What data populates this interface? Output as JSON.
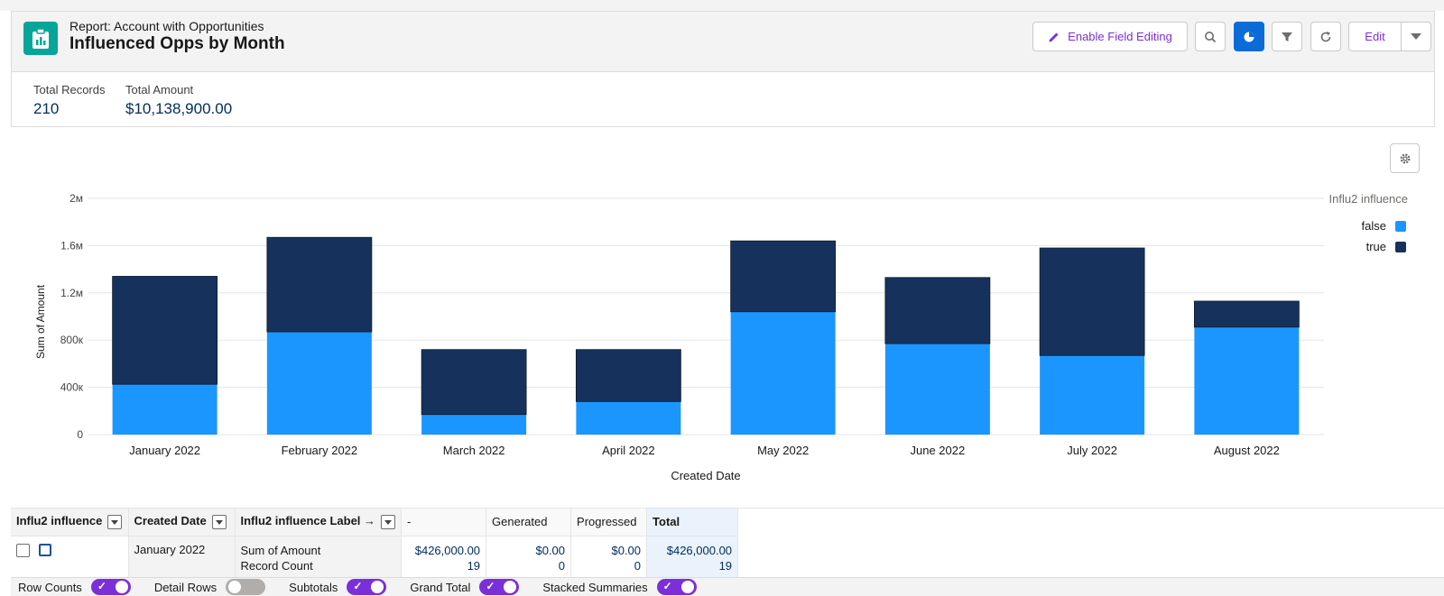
{
  "header": {
    "subtitle": "Report: Account with Opportunities",
    "title": "Influenced Opps by Month",
    "enable_field_editing": "Enable Field Editing",
    "edit_label": "Edit"
  },
  "summary": {
    "total_records_label": "Total Records",
    "total_records_value": "210",
    "total_amount_label": "Total Amount",
    "total_amount_value": "$10,138,900.00"
  },
  "chart_data": {
    "type": "bar",
    "stacked": true,
    "xlabel": "Created Date",
    "ylabel": "Sum of Amount",
    "ylim": [
      0,
      2000000
    ],
    "y_ticks": [
      "0",
      "400к",
      "800к",
      "1.2м",
      "1.6м",
      "2м"
    ],
    "y_tick_values": [
      0,
      400000,
      800000,
      1200000,
      1600000,
      2000000
    ],
    "categories": [
      "January 2022",
      "February 2022",
      "March 2022",
      "April 2022",
      "May 2022",
      "June 2022",
      "July 2022",
      "August 2022"
    ],
    "legend_title": "Influ2 influence",
    "legend_position": "top-right",
    "grid": true,
    "series": [
      {
        "name": "false",
        "color": "#1b96ff",
        "values": [
          426000,
          870000,
          170000,
          280000,
          1040000,
          770000,
          670000,
          910000
        ]
      },
      {
        "name": "true",
        "color": "#16325c",
        "values": [
          914000,
          800000,
          550000,
          440000,
          600000,
          560000,
          910000,
          220000
        ]
      }
    ]
  },
  "table": {
    "headers": {
      "col1": "Influ2 influence",
      "col2": "Created Date",
      "col3": "Influ2 influence Label →",
      "col4": "-",
      "col5": "Generated",
      "col6": "Progressed",
      "col7": "Total"
    },
    "row": {
      "created": "January 2022",
      "metric1": "Sum of Amount",
      "metric2": "Record Count",
      "dash_amount": "$426,000.00",
      "dash_count": "19",
      "gen_amount": "$0.00",
      "gen_count": "0",
      "prog_amount": "$0.00",
      "prog_count": "0",
      "total_amount": "$426,000.00",
      "total_count": "19"
    }
  },
  "footer": {
    "row_counts": "Row Counts",
    "detail_rows": "Detail Rows",
    "subtotals": "Subtotals",
    "grand_total": "Grand Total",
    "stacked_summaries": "Stacked Summaries"
  }
}
